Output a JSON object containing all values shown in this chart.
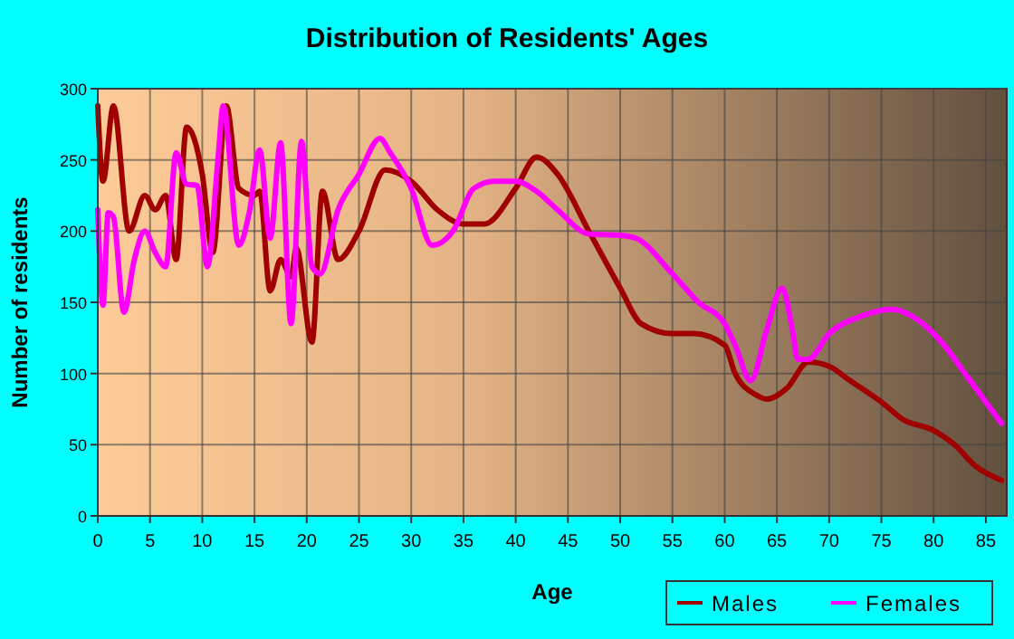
{
  "chart_data": {
    "type": "line",
    "title": "Distribution of Residents' Ages",
    "xlabel": "Age",
    "ylabel": "Number of residents",
    "xlim": [
      0,
      87
    ],
    "xticks": [
      0,
      5,
      10,
      15,
      20,
      25,
      30,
      35,
      40,
      45,
      50,
      55,
      60,
      65,
      70,
      75,
      80,
      85
    ],
    "ylim": [
      0,
      300
    ],
    "yticks": [
      0,
      50,
      100,
      150,
      200,
      250,
      300
    ],
    "grid": true,
    "legend": "bottom right",
    "marker": "none",
    "line_style": "solid",
    "series": [
      {
        "name": "Males",
        "color": "#a00000",
        "x": [
          0,
          0.5,
          1.5,
          3,
          4.5,
          5.5,
          6.5,
          7.5,
          8.5,
          10,
          11,
          12.3,
          13.5,
          15,
          15.5,
          16.5,
          17.5,
          18.5,
          19,
          20.5,
          21.5,
          23,
          25,
          27.5,
          30,
          32.5,
          35,
          37,
          40,
          42,
          44,
          47,
          50,
          52,
          55,
          57,
          60,
          61,
          63,
          64,
          66,
          68,
          70,
          72,
          75,
          77,
          80,
          82,
          84,
          86.5
        ],
        "values": [
          288,
          235,
          288,
          200,
          225,
          215,
          225,
          180,
          273,
          240,
          185,
          288,
          230,
          225,
          228,
          158,
          180,
          168,
          188,
          122,
          228,
          180,
          200,
          243,
          235,
          215,
          205,
          205,
          230,
          252,
          240,
          200,
          160,
          135,
          128,
          128,
          120,
          100,
          85,
          82,
          90,
          108,
          105,
          95,
          80,
          68,
          60,
          50,
          35,
          25
        ]
      },
      {
        "name": "Females",
        "color": "#ff00ff",
        "x": [
          0,
          0.5,
          1,
          1.5,
          2.5,
          3.5,
          4.5,
          5.5,
          6.5,
          7.5,
          8.5,
          9.5,
          10.5,
          11.5,
          12,
          13.5,
          14.5,
          15.5,
          16.5,
          17.5,
          18.5,
          19.5,
          20.5,
          21.3,
          23,
          25,
          27,
          28,
          30,
          32,
          34,
          36,
          38,
          40,
          42,
          44,
          47,
          50,
          51.5,
          55,
          57.5,
          60,
          61,
          62.5,
          64,
          65.5,
          66.5,
          67,
          68,
          70,
          73,
          76,
          78,
          81,
          83,
          85.5,
          86.5
        ],
        "values": [
          215,
          148,
          213,
          210,
          143,
          180,
          200,
          185,
          175,
          255,
          233,
          232,
          175,
          250,
          288,
          190,
          213,
          257,
          195,
          262,
          135,
          263,
          175,
          170,
          215,
          240,
          265,
          255,
          230,
          190,
          200,
          230,
          235,
          235,
          228,
          215,
          198,
          197,
          195,
          170,
          150,
          135,
          120,
          95,
          130,
          160,
          130,
          110,
          110,
          128,
          140,
          145,
          140,
          120,
          100,
          75,
          65
        ]
      }
    ]
  }
}
